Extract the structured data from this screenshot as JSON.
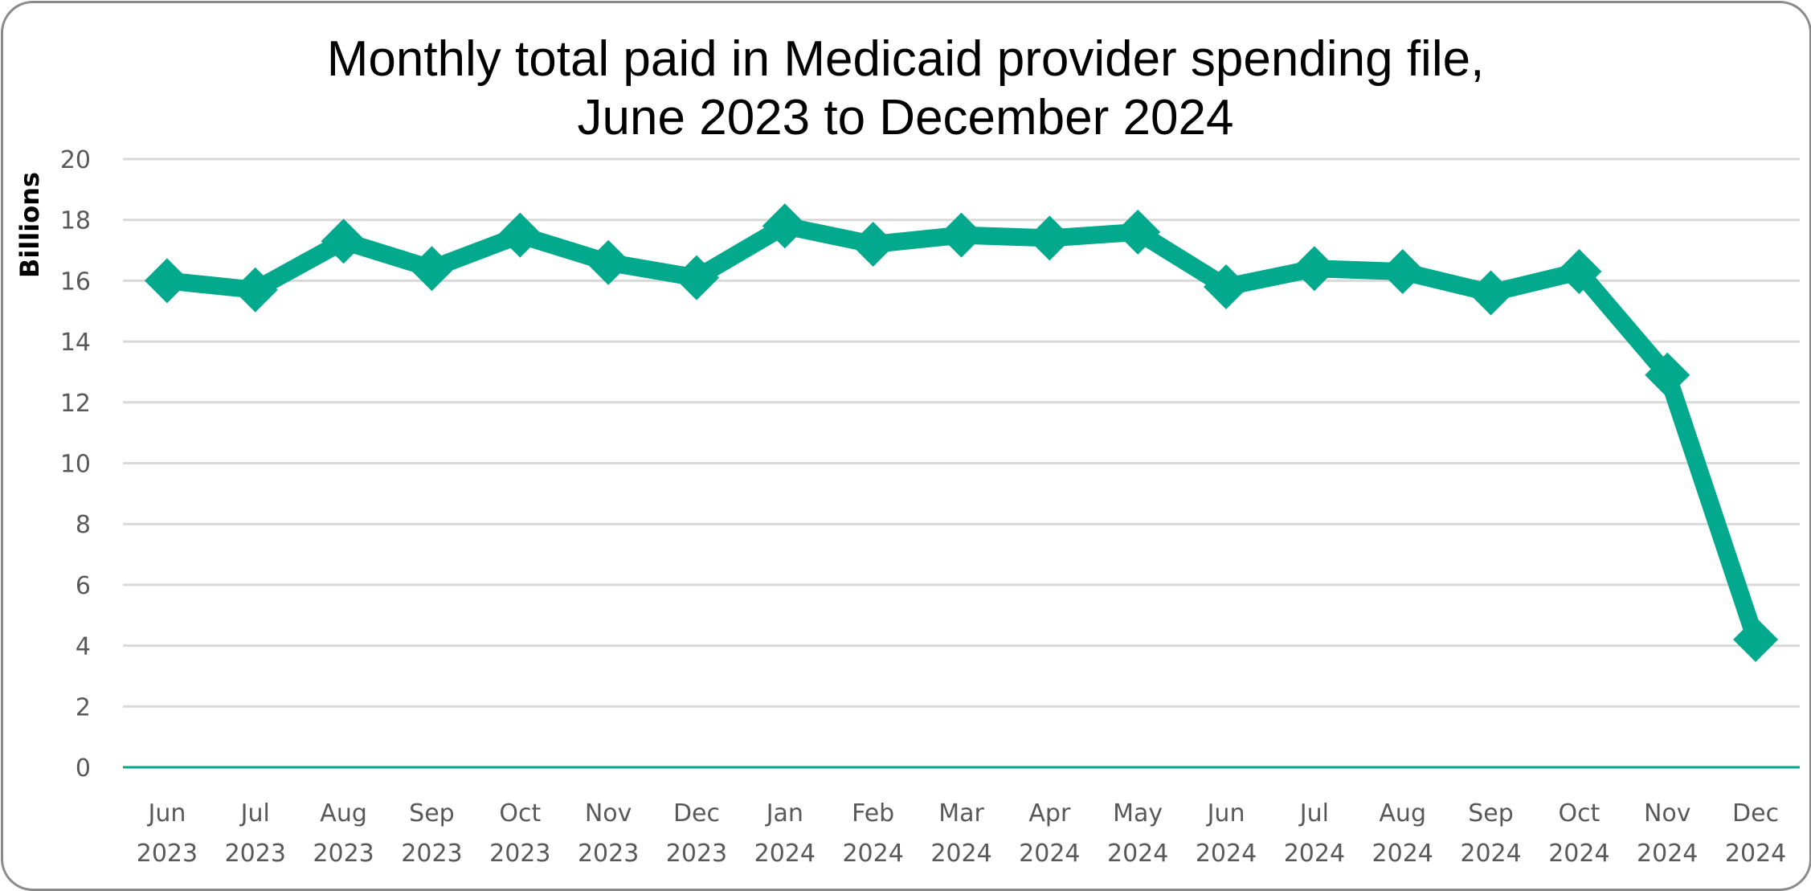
{
  "chart_data": {
    "type": "line",
    "title": "Monthly total paid in Medicaid provider spending file, June 2023 to December 2024",
    "title_lines": [
      "Monthly total paid in Medicaid provider spending file,",
      "June 2023 to December 2024"
    ],
    "xlabel": "",
    "ylabel": "Billions",
    "ylim": [
      0,
      20
    ],
    "yticks": [
      0,
      2,
      4,
      6,
      8,
      10,
      12,
      14,
      16,
      18,
      20
    ],
    "grid": true,
    "legend": "none",
    "categories": [
      {
        "month": "Jun",
        "year": "2023"
      },
      {
        "month": "Jul",
        "year": "2023"
      },
      {
        "month": "Aug",
        "year": "2023"
      },
      {
        "month": "Sep",
        "year": "2023"
      },
      {
        "month": "Oct",
        "year": "2023"
      },
      {
        "month": "Nov",
        "year": "2023"
      },
      {
        "month": "Dec",
        "year": "2023"
      },
      {
        "month": "Jan",
        "year": "2024"
      },
      {
        "month": "Feb",
        "year": "2024"
      },
      {
        "month": "Mar",
        "year": "2024"
      },
      {
        "month": "Apr",
        "year": "2024"
      },
      {
        "month": "May",
        "year": "2024"
      },
      {
        "month": "Jun",
        "year": "2024"
      },
      {
        "month": "Jul",
        "year": "2024"
      },
      {
        "month": "Aug",
        "year": "2024"
      },
      {
        "month": "Sep",
        "year": "2024"
      },
      {
        "month": "Oct",
        "year": "2024"
      },
      {
        "month": "Nov",
        "year": "2024"
      },
      {
        "month": "Dec",
        "year": "2024"
      }
    ],
    "series": [
      {
        "name": "Total paid",
        "marker": "diamond",
        "color": "#02A98C",
        "values": [
          16.0,
          15.7,
          17.3,
          16.4,
          17.5,
          16.6,
          16.1,
          17.8,
          17.2,
          17.5,
          17.4,
          17.6,
          15.8,
          16.4,
          16.3,
          15.6,
          16.3,
          12.9,
          4.2
        ]
      }
    ]
  },
  "colors": {
    "series": "#02A98C",
    "axis_line": "#02A98C",
    "gridline": "#D9D9D9",
    "tick_text": "#595959",
    "title_text": "#000000",
    "frame": "#8A8A8A"
  }
}
